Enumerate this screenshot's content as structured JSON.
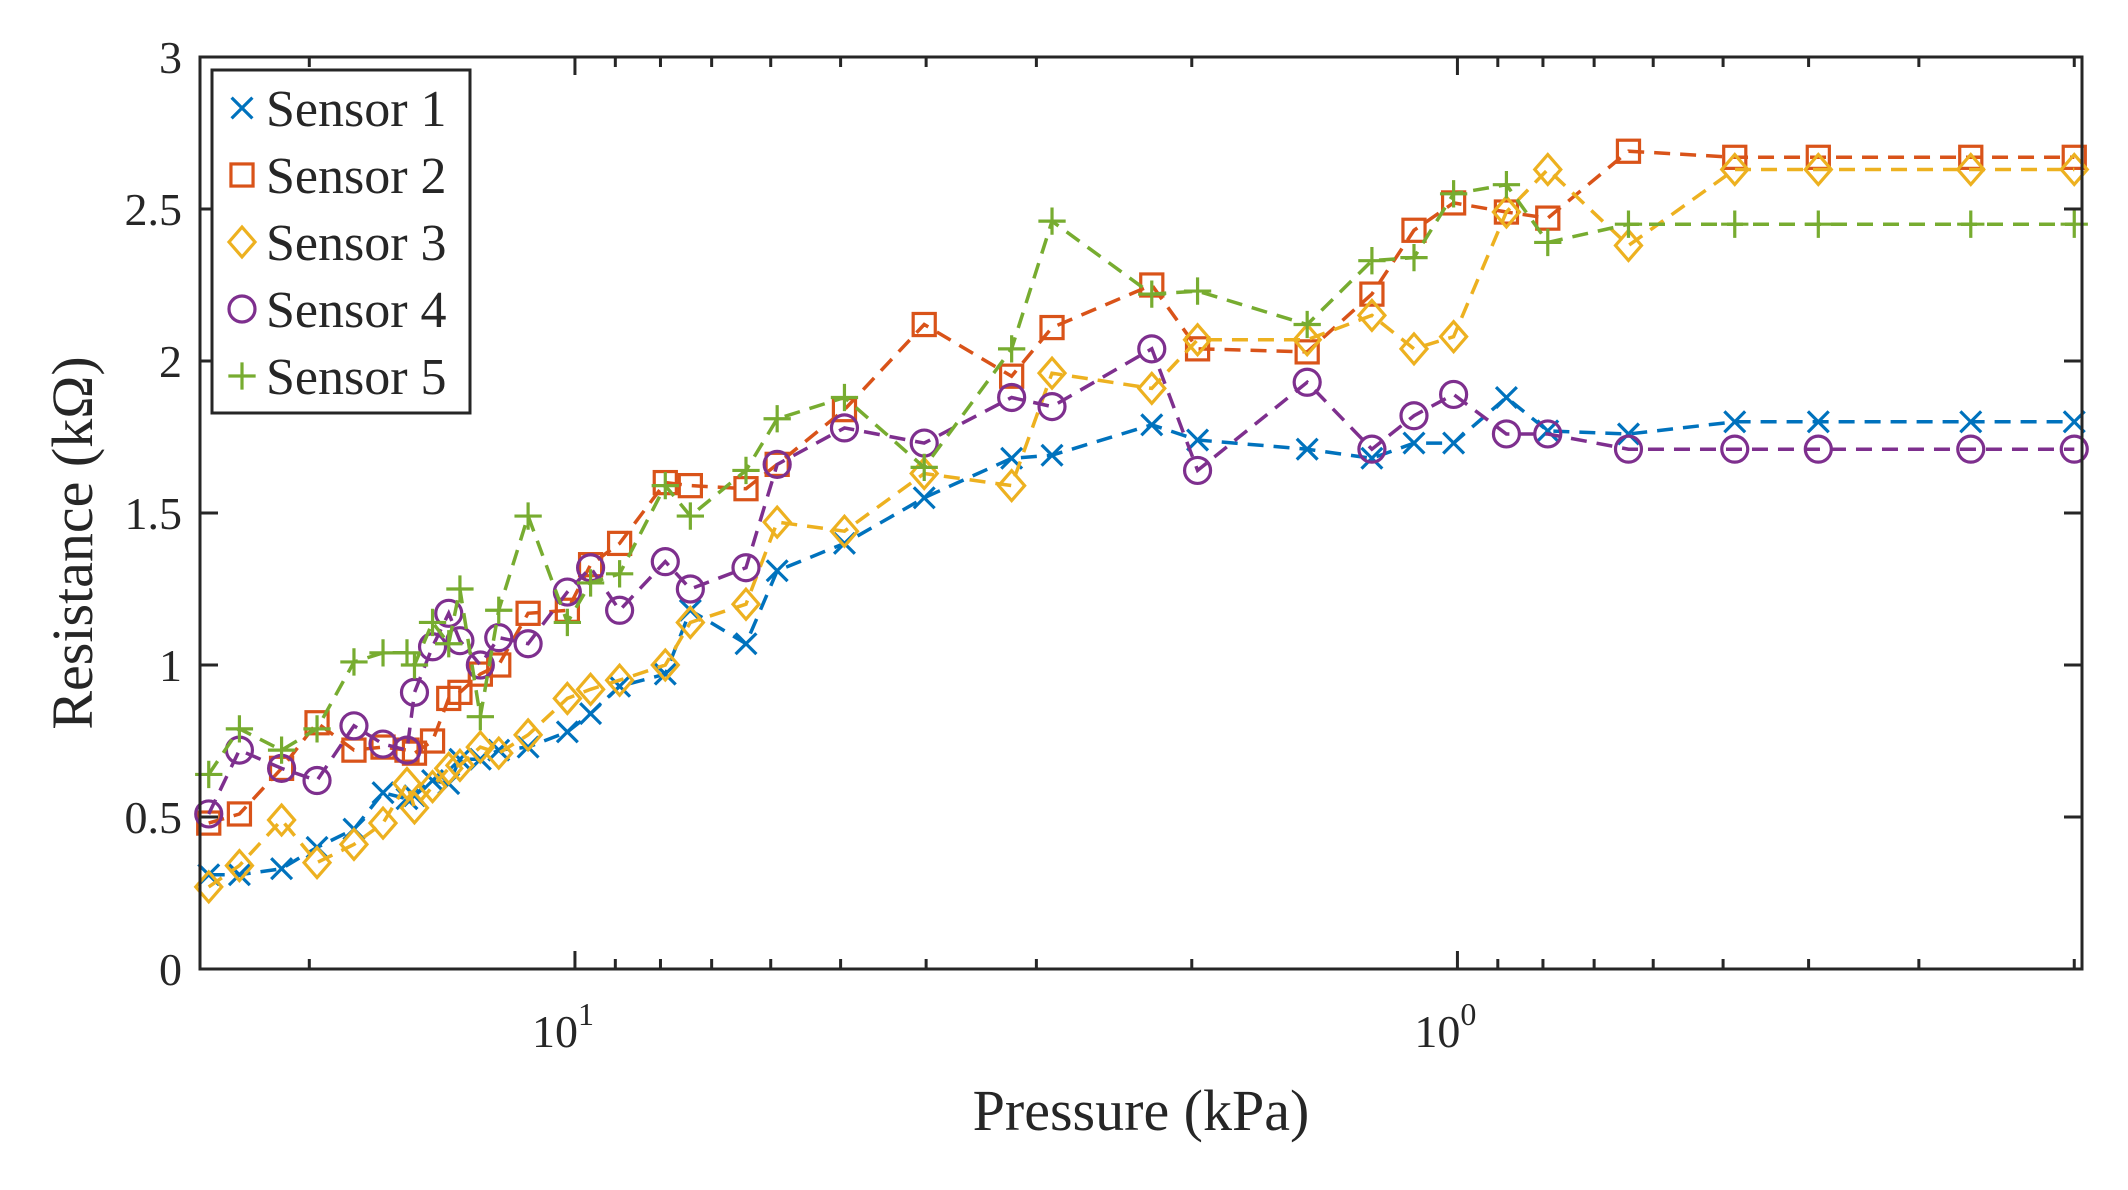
{
  "chart_data": {
    "type": "line",
    "title": "",
    "xlabel": "Pressure (kPa)",
    "ylabel": "Resistance (kΩ)",
    "x_scale": "log (axis labelled 10^1 then 10^0 as shown)",
    "x_tick_labels": [
      {
        "base": "10",
        "exp": "1",
        "x": 10
      },
      {
        "base": "10",
        "exp": "0",
        "x": 1
      }
    ],
    "x_axis_direction": "decreasing to the right",
    "xlim": [
      26.6,
      0.196
    ],
    "ylim": [
      0,
      3
    ],
    "y_ticks": [
      "0",
      "0.5",
      "1",
      "1.5",
      "2",
      "2.5",
      "3"
    ],
    "legend_position": "top-left",
    "x": [
      26.0,
      24.0,
      21.5,
      19.6,
      17.8,
      16.5,
      15.5,
      15.2,
      14.5,
      13.9,
      13.5,
      12.8,
      12.2,
      11.3,
      10.2,
      9.6,
      8.9,
      7.9,
      7.4,
      6.4,
      5.9,
      4.95,
      4.02,
      3.2,
      2.88,
      2.22,
      1.97,
      1.48,
      1.25,
      1.12,
      1.01,
      0.88,
      0.79,
      0.64,
      0.485,
      0.39,
      0.262,
      0.2
    ],
    "series": [
      {
        "name": "Sensor 1",
        "color": "#0072BD",
        "marker": "x",
        "values": [
          0.31,
          0.31,
          0.33,
          0.4,
          0.46,
          0.58,
          0.56,
          0.57,
          0.62,
          0.61,
          0.69,
          0.69,
          0.72,
          0.73,
          0.78,
          0.84,
          0.93,
          0.97,
          1.18,
          1.07,
          1.31,
          1.4,
          1.55,
          1.68,
          1.69,
          1.79,
          1.74,
          1.71,
          1.68,
          1.73,
          1.73,
          1.88,
          1.77,
          1.76,
          1.8,
          1.8,
          1.8,
          1.8
        ]
      },
      {
        "name": "Sensor 2",
        "color": "#D95319",
        "marker": "square",
        "values": [
          0.48,
          0.51,
          0.66,
          0.81,
          0.72,
          0.73,
          0.72,
          0.71,
          0.75,
          0.89,
          0.91,
          0.97,
          1.0,
          1.17,
          1.18,
          1.33,
          1.4,
          1.6,
          1.59,
          1.58,
          1.66,
          1.84,
          2.12,
          1.95,
          2.11,
          2.25,
          2.04,
          2.03,
          2.22,
          2.43,
          2.52,
          2.49,
          2.47,
          2.69,
          2.67,
          2.67,
          2.67,
          2.67
        ]
      },
      {
        "name": "Sensor 3",
        "color": "#EDB120",
        "marker": "diamond",
        "values": [
          0.27,
          0.34,
          0.49,
          0.35,
          0.41,
          0.48,
          0.61,
          0.53,
          0.6,
          0.66,
          0.67,
          0.73,
          0.71,
          0.77,
          0.89,
          0.92,
          0.95,
          1.0,
          1.14,
          1.2,
          1.47,
          1.44,
          1.63,
          1.59,
          1.96,
          1.91,
          2.07,
          2.07,
          2.15,
          2.04,
          2.08,
          2.49,
          2.63,
          2.38,
          2.63,
          2.63,
          2.63,
          2.63
        ]
      },
      {
        "name": "Sensor 4",
        "color": "#7E2F8E",
        "marker": "circle",
        "values": [
          0.51,
          0.72,
          0.66,
          0.62,
          0.8,
          0.74,
          0.72,
          0.91,
          1.06,
          1.17,
          1.08,
          1.0,
          1.09,
          1.07,
          1.24,
          1.32,
          1.18,
          1.34,
          1.25,
          1.32,
          1.66,
          1.78,
          1.73,
          1.88,
          1.85,
          2.04,
          1.64,
          1.93,
          1.71,
          1.82,
          1.89,
          1.76,
          1.76,
          1.71,
          1.71,
          1.71,
          1.71,
          1.71
        ]
      },
      {
        "name": "Sensor 5",
        "color": "#77AC30",
        "marker": "plus",
        "values": [
          0.64,
          0.79,
          0.72,
          0.79,
          1.01,
          1.04,
          1.04,
          1.0,
          1.14,
          1.07,
          1.25,
          0.83,
          1.18,
          1.49,
          1.14,
          1.27,
          1.3,
          1.59,
          1.49,
          1.64,
          1.81,
          1.88,
          1.65,
          2.04,
          2.46,
          2.22,
          2.23,
          2.12,
          2.33,
          2.34,
          2.55,
          2.58,
          2.39,
          2.45,
          2.45,
          2.45,
          2.45,
          2.45
        ]
      }
    ]
  }
}
